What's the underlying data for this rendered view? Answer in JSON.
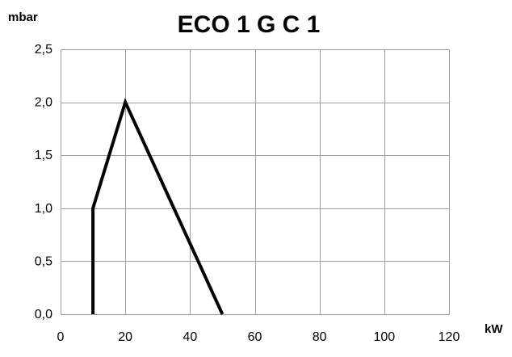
{
  "chart_data": {
    "type": "line",
    "title": "ECO 1 G C 1",
    "xlabel": "kW",
    "ylabel": "mbar",
    "xlim": [
      0,
      120
    ],
    "ylim": [
      0,
      2.5
    ],
    "x_ticks": [
      0,
      20,
      40,
      60,
      80,
      100,
      120
    ],
    "y_ticks": [
      0,
      0.5,
      1.0,
      1.5,
      2.0,
      2.5
    ],
    "x_tick_labels": [
      "0",
      "20",
      "40",
      "60",
      "80",
      "100",
      "120"
    ],
    "y_tick_labels": [
      "0,0",
      "0,5",
      "1,0",
      "1,5",
      "2,0",
      "2,5"
    ],
    "grid": true,
    "legend": "none",
    "series": [
      {
        "color": "#000000",
        "x": [
          10,
          10,
          20,
          50
        ],
        "y": [
          0,
          1.0,
          2.0,
          0
        ]
      }
    ]
  }
}
